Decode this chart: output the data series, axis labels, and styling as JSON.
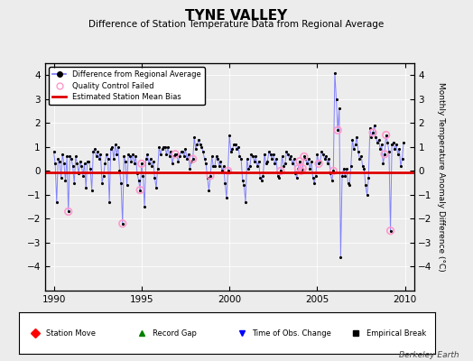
{
  "title": "TYNE VALLEY",
  "subtitle": "Difference of Station Temperature Data from Regional Average",
  "ylabel": "Monthly Temperature Anomaly Difference (°C)",
  "xlim": [
    1989.5,
    2010.5
  ],
  "ylim": [
    -5,
    4.5
  ],
  "yticks": [
    -4,
    -3,
    -2,
    -1,
    0,
    1,
    2,
    3,
    4
  ],
  "xticks": [
    1990,
    1995,
    2000,
    2005,
    2010
  ],
  "bg_color": "#ececec",
  "plot_bg_color": "#ececec",
  "bias_value": -0.07,
  "title_fontsize": 11,
  "subtitle_fontsize": 7.5,
  "watermark": "Berkeley Earth",
  "line_color": "#7777ff",
  "bias_color": "#dd0000",
  "qc_color": "#ff99cc",
  "data": {
    "years_months": [
      1990.0,
      1990.083,
      1990.167,
      1990.25,
      1990.333,
      1990.417,
      1990.5,
      1990.583,
      1990.667,
      1990.75,
      1990.833,
      1990.917,
      1991.0,
      1991.083,
      1991.167,
      1991.25,
      1991.333,
      1991.417,
      1991.5,
      1991.583,
      1991.667,
      1991.75,
      1991.833,
      1991.917,
      1992.0,
      1992.083,
      1992.167,
      1992.25,
      1992.333,
      1992.417,
      1992.5,
      1992.583,
      1992.667,
      1992.75,
      1992.833,
      1992.917,
      1993.0,
      1993.083,
      1993.167,
      1993.25,
      1993.333,
      1993.417,
      1993.5,
      1993.583,
      1993.667,
      1993.75,
      1993.833,
      1993.917,
      1994.0,
      1994.083,
      1994.167,
      1994.25,
      1994.333,
      1994.417,
      1994.5,
      1994.583,
      1994.667,
      1994.75,
      1994.833,
      1994.917,
      1995.0,
      1995.083,
      1995.167,
      1995.25,
      1995.333,
      1995.417,
      1995.5,
      1995.583,
      1995.667,
      1995.75,
      1995.833,
      1995.917,
      1996.0,
      1996.083,
      1996.167,
      1996.25,
      1996.333,
      1996.417,
      1996.5,
      1996.583,
      1996.667,
      1996.75,
      1996.833,
      1996.917,
      1997.0,
      1997.083,
      1997.167,
      1997.25,
      1997.333,
      1997.417,
      1997.5,
      1997.583,
      1997.667,
      1997.75,
      1997.833,
      1997.917,
      1998.0,
      1998.083,
      1998.167,
      1998.25,
      1998.333,
      1998.417,
      1998.5,
      1998.583,
      1998.667,
      1998.75,
      1998.833,
      1998.917,
      1999.0,
      1999.083,
      1999.167,
      1999.25,
      1999.333,
      1999.417,
      1999.5,
      1999.583,
      1999.667,
      1999.75,
      1999.833,
      1999.917,
      2000.0,
      2000.083,
      2000.167,
      2000.25,
      2000.333,
      2000.417,
      2000.5,
      2000.583,
      2000.667,
      2000.75,
      2000.833,
      2000.917,
      2001.0,
      2001.083,
      2001.167,
      2001.25,
      2001.333,
      2001.417,
      2001.5,
      2001.583,
      2001.667,
      2001.75,
      2001.833,
      2001.917,
      2002.0,
      2002.083,
      2002.167,
      2002.25,
      2002.333,
      2002.417,
      2002.5,
      2002.583,
      2002.667,
      2002.75,
      2002.833,
      2002.917,
      2003.0,
      2003.083,
      2003.167,
      2003.25,
      2003.333,
      2003.417,
      2003.5,
      2003.583,
      2003.667,
      2003.75,
      2003.833,
      2003.917,
      2004.0,
      2004.083,
      2004.167,
      2004.25,
      2004.333,
      2004.417,
      2004.5,
      2004.583,
      2004.667,
      2004.75,
      2004.833,
      2004.917,
      2005.0,
      2005.083,
      2005.167,
      2005.25,
      2005.333,
      2005.417,
      2005.5,
      2005.583,
      2005.667,
      2005.75,
      2005.833,
      2005.917,
      2006.0,
      2006.083,
      2006.167,
      2006.25,
      2006.333,
      2006.417,
      2006.5,
      2006.583,
      2006.667,
      2006.75,
      2006.833,
      2006.917,
      2007.0,
      2007.083,
      2007.167,
      2007.25,
      2007.333,
      2007.417,
      2007.5,
      2007.583,
      2007.667,
      2007.75,
      2007.833,
      2007.917,
      2008.0,
      2008.083,
      2008.167,
      2008.25,
      2008.333,
      2008.417,
      2008.5,
      2008.583,
      2008.667,
      2008.75,
      2008.833,
      2008.917,
      2009.0,
      2009.083,
      2009.167,
      2009.25,
      2009.333,
      2009.417,
      2009.5,
      2009.583,
      2009.667,
      2009.75,
      2009.833,
      2009.917
    ],
    "values": [
      0.8,
      0.3,
      -1.3,
      0.5,
      0.4,
      -0.3,
      0.7,
      0.3,
      -0.4,
      0.6,
      -1.7,
      0.6,
      0.5,
      0.2,
      -0.5,
      0.6,
      0.3,
      -0.1,
      0.4,
      0.2,
      -0.2,
      0.3,
      -0.7,
      0.4,
      0.4,
      0.1,
      -0.8,
      0.8,
      0.9,
      0.6,
      0.8,
      0.5,
      0.7,
      -0.5,
      -0.2,
      0.3,
      0.7,
      0.5,
      -1.3,
      0.9,
      1.0,
      0.5,
      1.1,
      0.7,
      1.0,
      0.0,
      -0.5,
      -2.2,
      0.6,
      0.4,
      -0.6,
      0.7,
      0.6,
      0.4,
      0.7,
      0.3,
      0.6,
      -0.1,
      -0.4,
      -0.8,
      0.3,
      -0.2,
      -1.5,
      0.5,
      0.7,
      0.3,
      0.5,
      0.2,
      0.4,
      -0.3,
      -0.7,
      0.1,
      1.0,
      0.7,
      0.9,
      1.0,
      1.0,
      0.7,
      1.0,
      0.6,
      0.8,
      0.3,
      0.6,
      0.7,
      0.7,
      0.4,
      0.6,
      0.8,
      0.8,
      0.6,
      0.9,
      0.5,
      0.7,
      0.1,
      0.4,
      0.5,
      1.4,
      0.9,
      1.1,
      1.3,
      1.1,
      1.0,
      0.8,
      0.5,
      0.3,
      -0.3,
      -0.8,
      -0.2,
      0.6,
      0.2,
      0.2,
      0.6,
      0.5,
      0.2,
      0.4,
      0.0,
      0.2,
      -0.5,
      -1.1,
      0.0,
      1.5,
      0.8,
      0.9,
      1.1,
      1.1,
      0.9,
      1.0,
      0.6,
      0.5,
      -0.4,
      -0.6,
      -1.3,
      0.5,
      0.1,
      0.2,
      0.7,
      0.6,
      0.4,
      0.6,
      0.2,
      0.4,
      -0.3,
      -0.4,
      -0.2,
      0.7,
      0.3,
      0.4,
      0.8,
      0.7,
      0.5,
      0.7,
      0.3,
      0.5,
      -0.2,
      -0.3,
      0.0,
      0.6,
      0.2,
      0.3,
      0.8,
      0.7,
      0.5,
      0.6,
      0.3,
      0.5,
      -0.1,
      -0.3,
      0.1,
      0.4,
      0.0,
      0.1,
      0.6,
      0.5,
      0.3,
      0.5,
      0.1,
      0.4,
      -0.3,
      -0.5,
      -0.2,
      0.7,
      0.3,
      0.4,
      0.8,
      0.7,
      0.5,
      0.6,
      0.3,
      0.5,
      -0.1,
      -0.4,
      0.0,
      4.1,
      3.0,
      1.7,
      2.6,
      -3.6,
      -0.2,
      0.1,
      -0.2,
      0.1,
      -0.5,
      -0.6,
      0.2,
      1.3,
      0.9,
      1.1,
      1.4,
      0.8,
      0.5,
      0.6,
      0.2,
      0.1,
      -0.6,
      -1.0,
      -0.3,
      1.8,
      1.4,
      1.6,
      1.9,
      1.4,
      1.2,
      1.3,
      0.9,
      1.1,
      0.3,
      0.7,
      1.5,
      1.2,
      0.8,
      -2.5,
      1.1,
      1.2,
      0.9,
      1.1,
      0.7,
      0.9,
      0.2,
      0.5,
      1.2
    ],
    "qc_failed_indices": [
      10,
      47,
      59,
      60,
      83,
      95,
      107,
      119,
      155,
      167,
      168,
      169,
      170,
      171,
      181,
      191,
      194,
      218,
      226,
      227,
      230
    ]
  }
}
